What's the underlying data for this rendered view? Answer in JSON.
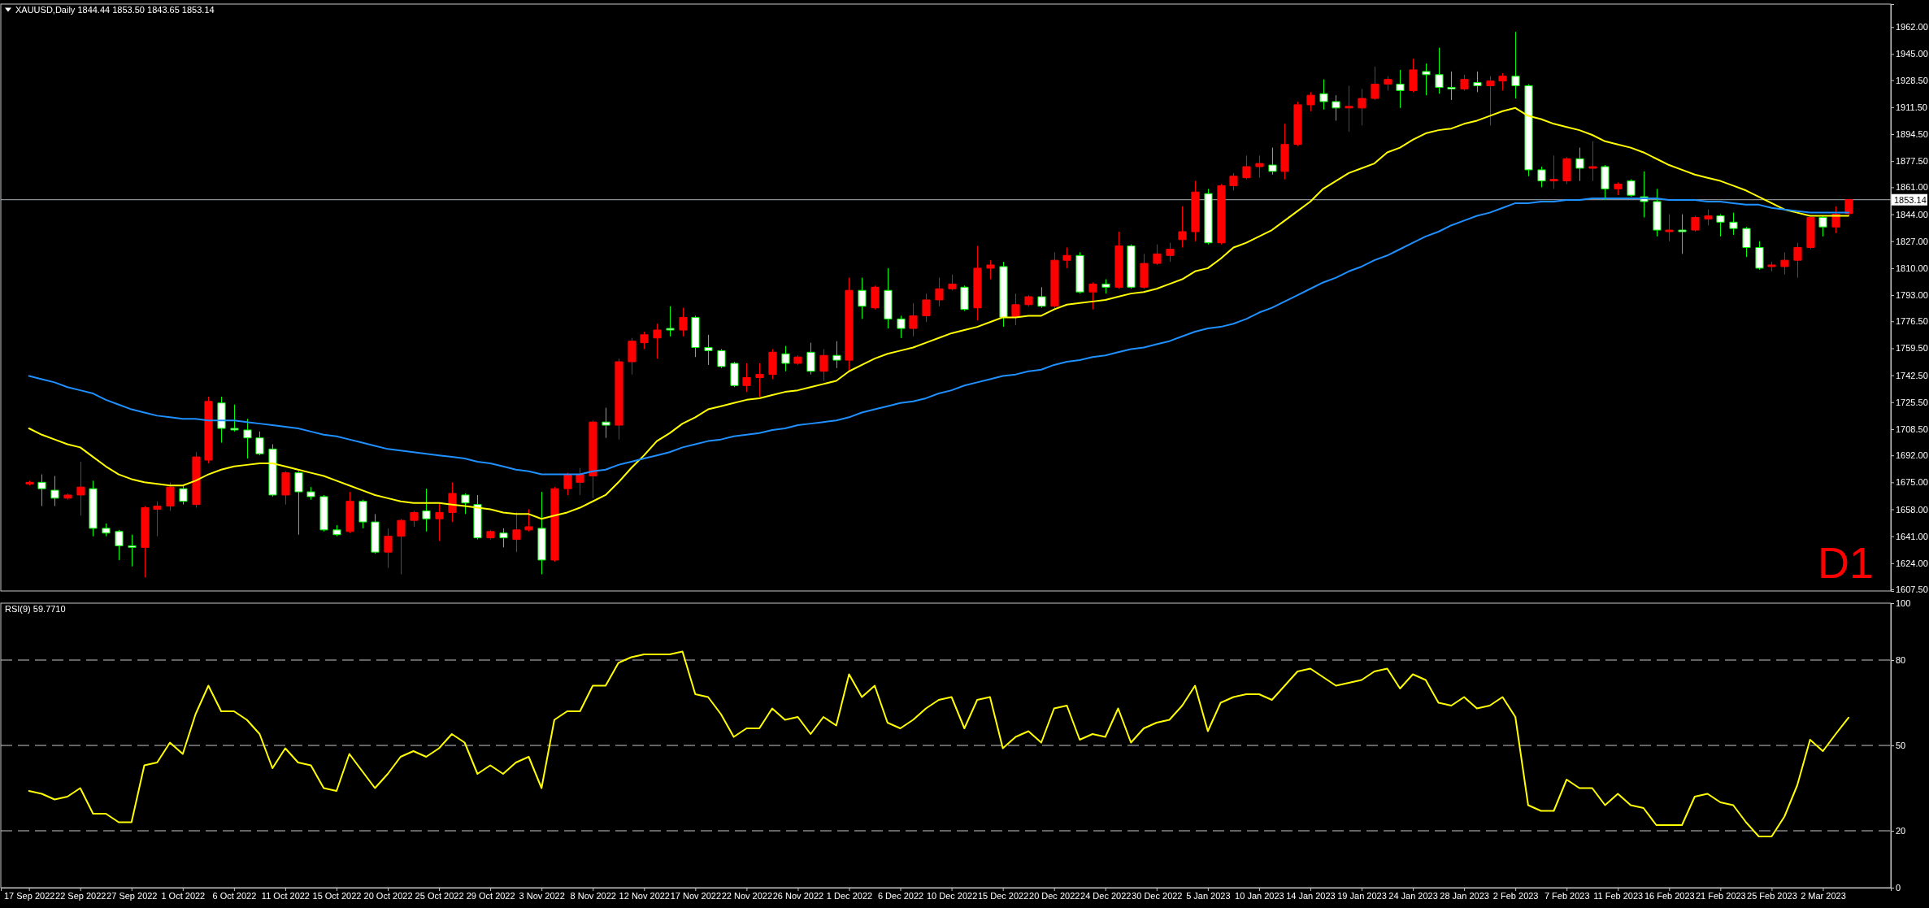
{
  "chart_data": [
    {
      "type": "candlestick",
      "title": "XAUUSD,Daily 1844.44 1853.50 1843.65 1853.14",
      "categories": [
        null,
        null,
        null,
        null,
        null,
        null,
        null,
        null,
        null,
        null,
        null,
        null,
        null,
        null,
        null,
        null,
        null,
        null,
        null,
        null,
        null,
        null,
        null,
        null,
        null,
        null,
        null,
        null,
        null,
        null,
        null,
        null,
        null,
        null,
        null,
        null,
        null,
        null,
        null,
        null,
        null,
        null,
        null,
        null,
        null,
        null,
        null,
        null,
        null,
        null,
        null,
        null,
        null,
        null,
        null,
        null,
        null,
        null,
        null,
        null,
        null,
        null,
        null,
        null,
        null,
        null,
        null,
        null,
        null,
        null,
        null,
        null,
        null,
        null,
        null,
        null,
        null,
        null,
        null,
        null,
        null,
        null,
        null,
        null,
        null,
        null,
        null,
        null,
        null,
        null,
        null,
        null,
        null,
        null,
        null,
        null,
        null,
        null,
        null,
        null,
        null,
        null,
        null,
        null,
        null,
        null,
        null,
        null,
        null,
        null,
        null,
        null,
        null,
        null,
        null,
        null,
        null,
        null,
        null,
        null,
        null,
        null,
        null,
        null,
        null,
        null,
        null,
        null,
        null,
        null,
        null,
        null,
        null,
        null,
        null,
        null,
        null,
        null,
        null,
        null,
        null,
        null,
        null
      ],
      "ohlc": [
        [
          1674,
          1676,
          1673,
          1675
        ],
        [
          1675,
          1680,
          1660,
          1671
        ],
        [
          1670,
          1679,
          1660,
          1665
        ],
        [
          1665,
          1668,
          1664,
          1667
        ],
        [
          1667,
          1688,
          1654,
          1672
        ],
        [
          1671,
          1676,
          1641,
          1646
        ],
        [
          1646,
          1649,
          1641,
          1643
        ],
        [
          1644,
          1645,
          1626,
          1635
        ],
        [
          1635,
          1642,
          1622,
          1634
        ],
        [
          1634,
          1660,
          1615,
          1659
        ],
        [
          1658,
          1663,
          1641,
          1660
        ],
        [
          1660,
          1675,
          1657,
          1672
        ],
        [
          1671,
          1673,
          1661,
          1663
        ],
        [
          1661,
          1694,
          1659,
          1691
        ],
        [
          1689,
          1729,
          1687,
          1726
        ],
        [
          1725,
          1729,
          1700,
          1709
        ],
        [
          1709,
          1724,
          1707,
          1708
        ],
        [
          1708,
          1715,
          1690,
          1703
        ],
        [
          1703,
          1707,
          1692,
          1693
        ],
        [
          1696,
          1699,
          1666,
          1667
        ],
        [
          1667,
          1682,
          1661,
          1681
        ],
        [
          1681,
          1682,
          1642,
          1669
        ],
        [
          1669,
          1672,
          1664,
          1666
        ],
        [
          1666,
          1667,
          1644,
          1645
        ],
        [
          1645,
          1648,
          1641,
          1642
        ],
        [
          1644,
          1669,
          1643,
          1663
        ],
        [
          1663,
          1664,
          1646,
          1650
        ],
        [
          1650,
          1655,
          1630,
          1631
        ],
        [
          1631,
          1646,
          1621,
          1641
        ],
        [
          1641,
          1652,
          1617,
          1651
        ],
        [
          1651,
          1657,
          1647,
          1656
        ],
        [
          1657,
          1671,
          1644,
          1652
        ],
        [
          1652,
          1662,
          1638,
          1656
        ],
        [
          1656,
          1675,
          1650,
          1668
        ],
        [
          1667,
          1668,
          1655,
          1662
        ],
        [
          1661,
          1667,
          1639,
          1640
        ],
        [
          1640,
          1645,
          1639,
          1644
        ],
        [
          1643,
          1646,
          1634,
          1640
        ],
        [
          1639,
          1656,
          1631,
          1645
        ],
        [
          1645,
          1658,
          1644,
          1647
        ],
        [
          1646,
          1669,
          1617,
          1626
        ],
        [
          1626,
          1672,
          1625,
          1671
        ],
        [
          1671,
          1681,
          1667,
          1680
        ],
        [
          1675,
          1684,
          1667,
          1680
        ],
        [
          1679,
          1714,
          1665,
          1713
        ],
        [
          1713,
          1722,
          1703,
          1711
        ],
        [
          1711,
          1753,
          1702,
          1751
        ],
        [
          1751,
          1766,
          1743,
          1764
        ],
        [
          1763,
          1770,
          1759,
          1768
        ],
        [
          1766,
          1775,
          1753,
          1771
        ],
        [
          1772,
          1786,
          1767,
          1771
        ],
        [
          1771,
          1785,
          1767,
          1779
        ],
        [
          1779,
          1780,
          1754,
          1760
        ],
        [
          1760,
          1768,
          1749,
          1758
        ],
        [
          1758,
          1759,
          1747,
          1748
        ],
        [
          1750,
          1751,
          1735,
          1736
        ],
        [
          1736,
          1750,
          1732,
          1741
        ],
        [
          1741,
          1750,
          1729,
          1743
        ],
        [
          1743,
          1759,
          1740,
          1757
        ],
        [
          1756,
          1761,
          1745,
          1750
        ],
        [
          1750,
          1755,
          1749,
          1754
        ],
        [
          1757,
          1763,
          1743,
          1745
        ],
        [
          1745,
          1759,
          1739,
          1755
        ],
        [
          1755,
          1764,
          1747,
          1752
        ],
        [
          1752,
          1804,
          1745,
          1796
        ],
        [
          1796,
          1804,
          1778,
          1786
        ],
        [
          1785,
          1799,
          1784,
          1798
        ],
        [
          1796,
          1810,
          1772,
          1778
        ],
        [
          1778,
          1780,
          1766,
          1772
        ],
        [
          1772,
          1788,
          1767,
          1780
        ],
        [
          1780,
          1794,
          1776,
          1790
        ],
        [
          1790,
          1804,
          1786,
          1797
        ],
        [
          1797,
          1806,
          1796,
          1800
        ],
        [
          1798,
          1799,
          1783,
          1784
        ],
        [
          1785,
          1824,
          1777,
          1810
        ],
        [
          1810,
          1815,
          1803,
          1812
        ],
        [
          1811,
          1814,
          1773,
          1779
        ],
        [
          1779,
          1794,
          1774,
          1787
        ],
        [
          1787,
          1793,
          1786,
          1792
        ],
        [
          1792,
          1798,
          1785,
          1786
        ],
        [
          1786,
          1820,
          1784,
          1815
        ],
        [
          1815,
          1823,
          1810,
          1818
        ],
        [
          1818,
          1820,
          1794,
          1795
        ],
        [
          1795,
          1801,
          1784,
          1800
        ],
        [
          1800,
          1803,
          1794,
          1798
        ],
        [
          1798,
          1833,
          1797,
          1824
        ],
        [
          1824,
          1825,
          1797,
          1798
        ],
        [
          1798,
          1819,
          1797,
          1813
        ],
        [
          1813,
          1825,
          1812,
          1819
        ],
        [
          1818,
          1826,
          1814,
          1822
        ],
        [
          1828,
          1849,
          1823,
          1833
        ],
        [
          1833,
          1865,
          1827,
          1858
        ],
        [
          1857,
          1860,
          1825,
          1826
        ],
        [
          1826,
          1863,
          1825,
          1862
        ],
        [
          1862,
          1870,
          1859,
          1868
        ],
        [
          1867,
          1881,
          1866,
          1874
        ],
        [
          1874,
          1881,
          1867,
          1876
        ],
        [
          1875,
          1886,
          1869,
          1871
        ],
        [
          1871,
          1901,
          1866,
          1888
        ],
        [
          1888,
          1915,
          1887,
          1913
        ],
        [
          1913,
          1921,
          1909,
          1919
        ],
        [
          1920,
          1929,
          1910,
          1915
        ],
        [
          1915,
          1919,
          1903,
          1911
        ],
        [
          1911,
          1925,
          1896,
          1912
        ],
        [
          1911,
          1923,
          1900,
          1917
        ],
        [
          1917,
          1937,
          1916,
          1926
        ],
        [
          1926,
          1931,
          1922,
          1929
        ],
        [
          1926,
          1935,
          1911,
          1922
        ],
        [
          1922,
          1942,
          1921,
          1935
        ],
        [
          1934,
          1939,
          1919,
          1932
        ],
        [
          1932,
          1949,
          1920,
          1924
        ],
        [
          1924,
          1934,
          1916,
          1923
        ],
        [
          1923,
          1932,
          1922,
          1929
        ],
        [
          1927,
          1934,
          1921,
          1925
        ],
        [
          1925,
          1931,
          1900,
          1928
        ],
        [
          1928,
          1933,
          1922,
          1931
        ],
        [
          1931,
          1959,
          1917,
          1925
        ],
        [
          1925,
          1926,
          1868,
          1872
        ],
        [
          1872,
          1874,
          1861,
          1865
        ],
        [
          1865,
          1881,
          1860,
          1866
        ],
        [
          1865,
          1880,
          1863,
          1879
        ],
        [
          1879,
          1886,
          1865,
          1873
        ],
        [
          1873,
          1890,
          1865,
          1874
        ],
        [
          1874,
          1875,
          1853,
          1860
        ],
        [
          1860,
          1864,
          1856,
          1863
        ],
        [
          1865,
          1866,
          1855,
          1856
        ],
        [
          1855,
          1871,
          1842,
          1852
        ],
        [
          1852,
          1860,
          1830,
          1834
        ],
        [
          1833,
          1844,
          1827,
          1834
        ],
        [
          1834,
          1844,
          1819,
          1833
        ],
        [
          1834,
          1843,
          1833,
          1842
        ],
        [
          1841,
          1847,
          1837,
          1843
        ],
        [
          1843,
          1844,
          1830,
          1839
        ],
        [
          1839,
          1845,
          1831,
          1835
        ],
        [
          1835,
          1836,
          1817,
          1823
        ],
        [
          1823,
          1827,
          1809,
          1810
        ],
        [
          1811,
          1814,
          1808,
          1812
        ],
        [
          1811,
          1820,
          1806,
          1815
        ],
        [
          1815,
          1826,
          1804,
          1823
        ],
        [
          1823,
          1842,
          1822,
          1842
        ],
        [
          1842,
          1843,
          1830,
          1836
        ],
        [
          1836,
          1849,
          1832,
          1844
        ],
        [
          1844.44,
          1853.5,
          1843.65,
          1853.14
        ]
      ],
      "series": [
        {
          "type": "line",
          "color": "#ffff00",
          "values": [
            1709,
            1705,
            1702,
            1699,
            1697,
            1691,
            1685,
            1680,
            1677,
            1675,
            1674,
            1673,
            1673,
            1676,
            1680,
            1683,
            1685,
            1686,
            1687,
            1687,
            1685,
            1683,
            1681,
            1679,
            1676,
            1673,
            1670,
            1667,
            1665,
            1663,
            1662,
            1662,
            1662,
            1661,
            1660,
            1659,
            1658,
            1656,
            1655,
            1655,
            1652,
            1654,
            1656,
            1659,
            1663,
            1667,
            1675,
            1684,
            1692,
            1701,
            1706,
            1712,
            1716,
            1721,
            1723,
            1725,
            1727,
            1728,
            1730,
            1732,
            1733,
            1735,
            1737,
            1739,
            1745,
            1749,
            1753,
            1756,
            1758,
            1760,
            1763,
            1766,
            1769,
            1771,
            1773,
            1776,
            1779,
            1779,
            1780,
            1780,
            1784,
            1787,
            1788,
            1789,
            1790,
            1792,
            1794,
            1795,
            1797,
            1800,
            1803,
            1808,
            1810,
            1816,
            1823,
            1826,
            1830,
            1834,
            1840,
            1846,
            1852,
            1860,
            1865,
            1870,
            1873,
            1876,
            1883,
            1886,
            1891,
            1895,
            1897,
            1898,
            1901,
            1903,
            1906,
            1909,
            1911,
            1906,
            1904,
            1901,
            1899,
            1897,
            1894,
            1890,
            1888,
            1886,
            1883,
            1879,
            1875,
            1872,
            1869,
            1867,
            1865,
            1862,
            1859,
            1855,
            1851,
            1847,
            1845,
            1843,
            1843,
            1843,
            1843
          ]
        },
        {
          "type": "line",
          "color": "#1e90ff",
          "values": [
            1742,
            1740,
            1738,
            1735,
            1733,
            1731,
            1727,
            1724,
            1721,
            1719,
            1717,
            1716,
            1715,
            1715,
            1714,
            1714,
            1714,
            1713,
            1712,
            1711,
            1710,
            1709,
            1707,
            1705,
            1704,
            1702,
            1700,
            1698,
            1696,
            1695,
            1694,
            1693,
            1692,
            1691,
            1690,
            1688,
            1687,
            1685,
            1683,
            1682,
            1680,
            1680,
            1680,
            1680,
            1682,
            1683,
            1686,
            1688,
            1690,
            1692,
            1694,
            1697,
            1699,
            1701,
            1702,
            1704,
            1705,
            1706,
            1708,
            1709,
            1711,
            1712,
            1713,
            1714,
            1716,
            1719,
            1721,
            1723,
            1725,
            1726,
            1728,
            1731,
            1733,
            1736,
            1738,
            1740,
            1742,
            1743,
            1745,
            1746,
            1749,
            1751,
            1752,
            1754,
            1755,
            1757,
            1759,
            1760,
            1762,
            1764,
            1767,
            1770,
            1772,
            1773,
            1775,
            1778,
            1782,
            1785,
            1789,
            1793,
            1797,
            1801,
            1804,
            1808,
            1811,
            1815,
            1818,
            1822,
            1826,
            1830,
            1833,
            1837,
            1840,
            1843,
            1845,
            1848,
            1851,
            1851,
            1852,
            1852,
            1853,
            1853,
            1854,
            1854,
            1854,
            1854,
            1854,
            1854,
            1853,
            1853,
            1853,
            1852,
            1852,
            1851,
            1850,
            1850,
            1848,
            1847,
            1846,
            1845,
            1845,
            1845,
            1845
          ]
        }
      ],
      "ylim": [
        1606.5,
        1976.5
      ],
      "yticks": [
        {
          "value": 1607.5,
          "label": "1607.50"
        },
        {
          "value": 1624,
          "label": "1624.00"
        },
        {
          "value": 1641,
          "label": "1641.00"
        },
        {
          "value": 1658,
          "label": "1658.00"
        },
        {
          "value": 1675,
          "label": "1675.00"
        },
        {
          "value": 1692,
          "label": "1692.00"
        },
        {
          "value": 1708.5,
          "label": "1708.50"
        },
        {
          "value": 1725.5,
          "label": "1725.50"
        },
        {
          "value": 1742.5,
          "label": "1742.50"
        },
        {
          "value": 1759.5,
          "label": "1759.50"
        },
        {
          "value": 1776.5,
          "label": "1776.50"
        },
        {
          "value": 1793,
          "label": "1793.00"
        },
        {
          "value": 1810,
          "label": "1810.00"
        },
        {
          "value": 1827,
          "label": "1827.00"
        },
        {
          "value": 1844,
          "label": "1844.00"
        },
        {
          "value": 1861,
          "label": "1861.00"
        },
        {
          "value": 1877.5,
          "label": "1877.50"
        },
        {
          "value": 1894.5,
          "label": "1894.50"
        },
        {
          "value": 1911.5,
          "label": "1911.50"
        },
        {
          "value": 1928.5,
          "label": "1928.50"
        },
        {
          "value": 1945,
          "label": "1945.00"
        },
        {
          "value": 1962,
          "label": "1962.00"
        }
      ],
      "ref_lines": [
        {
          "axis": "y",
          "value": 1853.14,
          "label": "1853.14",
          "color": "#a8b0b8"
        }
      ],
      "annotations": [
        "D1"
      ],
      "tick_labels": "y"
    },
    {
      "type": "line",
      "title": "RSI(9) 59.7710",
      "categories": [
        "17 Sep 2022",
        null,
        null,
        null,
        "22 Sep 2022",
        null,
        null,
        null,
        "27 Sep 2022",
        null,
        null,
        null,
        "1 Oct 2022",
        null,
        null,
        null,
        "6 Oct 2022",
        null,
        null,
        null,
        "11 Oct 2022",
        null,
        null,
        null,
        "15 Oct 2022",
        null,
        null,
        null,
        "20 Oct 2022",
        null,
        null,
        null,
        "25 Oct 2022",
        null,
        null,
        null,
        "29 Oct 2022",
        null,
        null,
        null,
        "3 Nov 2022",
        null,
        null,
        null,
        "8 Nov 2022",
        null,
        null,
        null,
        "12 Nov 2022",
        null,
        null,
        null,
        "17 Nov 2022",
        null,
        null,
        null,
        "22 Nov 2022",
        null,
        null,
        null,
        "26 Nov 2022",
        null,
        null,
        null,
        "1 Dec 2022",
        null,
        null,
        null,
        "6 Dec 2022",
        null,
        null,
        null,
        "10 Dec 2022",
        null,
        null,
        null,
        "15 Dec 2022",
        null,
        null,
        null,
        "20 Dec 2022",
        null,
        null,
        null,
        "24 Dec 2022",
        null,
        null,
        null,
        "30 Dec 2022",
        null,
        null,
        null,
        "5 Jan 2023",
        null,
        null,
        null,
        "10 Jan 2023",
        null,
        null,
        null,
        "14 Jan 2023",
        null,
        null,
        null,
        "19 Jan 2023",
        null,
        null,
        null,
        "24 Jan 2023",
        null,
        null,
        null,
        "28 Jan 2023",
        null,
        null,
        null,
        "2 Feb 2023",
        null,
        null,
        null,
        "7 Feb 2023",
        null,
        null,
        null,
        "11 Feb 2023",
        null,
        null,
        null,
        "16 Feb 2023",
        null,
        null,
        null,
        "21 Feb 2023",
        null,
        null,
        null,
        "25 Feb 2023",
        null,
        null,
        null,
        "2 Mar 2023",
        null,
        null
      ],
      "series": [
        {
          "color": "#ffff00",
          "values": [
            34,
            33,
            31,
            32,
            35,
            26,
            26,
            23,
            23,
            43,
            44,
            51,
            47,
            61,
            71,
            62,
            62,
            59,
            54,
            42,
            49,
            44,
            43,
            35,
            34,
            47,
            41,
            35,
            40,
            46,
            48,
            46,
            49,
            54,
            51,
            40,
            43,
            40,
            44,
            46,
            35,
            59,
            62,
            62,
            71,
            71,
            79,
            81,
            82,
            82,
            82,
            83,
            68,
            67,
            61,
            53,
            56,
            56,
            63,
            59,
            60,
            54,
            60,
            57,
            75,
            67,
            71,
            58,
            56,
            59,
            63,
            66,
            67,
            56,
            66,
            67,
            49,
            53,
            55,
            51,
            63,
            64,
            52,
            54,
            53,
            63,
            51,
            56,
            58,
            59,
            64,
            71,
            55,
            65,
            67,
            68,
            68,
            66,
            71,
            76,
            77,
            74,
            71,
            72,
            73,
            76,
            77,
            70,
            75,
            73,
            65,
            64,
            67,
            63,
            64,
            67,
            60,
            29,
            27,
            27,
            38,
            35,
            35,
            29,
            33,
            29,
            28,
            22,
            22,
            22,
            32,
            33,
            30,
            29,
            23,
            18,
            18,
            25,
            36,
            52,
            48,
            54,
            59.771
          ]
        }
      ],
      "ylim": [
        0,
        100
      ],
      "yticks": [
        0,
        20,
        50,
        80,
        100
      ],
      "ref_lines": [
        {
          "axis": "y",
          "value": 20,
          "color": "#c8c8c8",
          "line_style": "dashed"
        },
        {
          "axis": "y",
          "value": 50,
          "color": "#c8c8c8",
          "line_style": "dashed"
        },
        {
          "axis": "y",
          "value": 80,
          "color": "#c8c8c8",
          "line_style": "dashed"
        }
      ]
    }
  ]
}
